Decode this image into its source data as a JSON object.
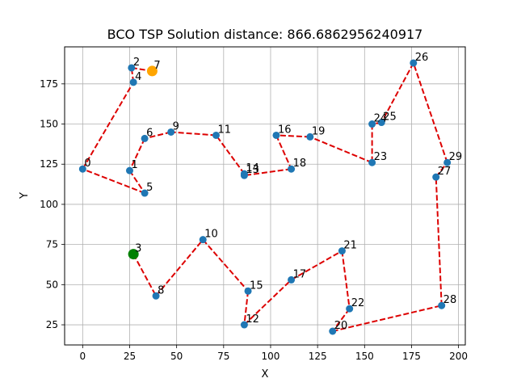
{
  "chart_data": {
    "type": "scatter",
    "title": "BCO TSP Solution distance: 866.6862956240917",
    "xlabel": "X",
    "ylabel": "Y",
    "xlim": [
      -9.6,
      203.6
    ],
    "ylim": [
      12.45,
      198.05
    ],
    "xticks": [
      0,
      25,
      50,
      75,
      100,
      125,
      150,
      175,
      200
    ],
    "yticks": [
      25,
      50,
      75,
      100,
      125,
      150,
      175
    ],
    "grid": true,
    "route_color": "#dd0000",
    "point_color": "#1f77b4",
    "start_color": "#008000",
    "end_color": "#ffa500",
    "points": [
      {
        "label": "0",
        "x": 0,
        "y": 122
      },
      {
        "label": "1",
        "x": 25,
        "y": 121
      },
      {
        "label": "2",
        "x": 26,
        "y": 185
      },
      {
        "label": "3",
        "x": 27,
        "y": 69
      },
      {
        "label": "4",
        "x": 27,
        "y": 176
      },
      {
        "label": "5",
        "x": 33,
        "y": 107
      },
      {
        "label": "6",
        "x": 33,
        "y": 141
      },
      {
        "label": "7",
        "x": 37,
        "y": 183
      },
      {
        "label": "8",
        "x": 39,
        "y": 43
      },
      {
        "label": "9",
        "x": 47,
        "y": 145
      },
      {
        "label": "10",
        "x": 64,
        "y": 78
      },
      {
        "label": "11",
        "x": 71,
        "y": 143
      },
      {
        "label": "12",
        "x": 86,
        "y": 25
      },
      {
        "label": "13",
        "x": 86,
        "y": 118
      },
      {
        "label": "14",
        "x": 86,
        "y": 119
      },
      {
        "label": "15",
        "x": 88,
        "y": 46
      },
      {
        "label": "16",
        "x": 103,
        "y": 143
      },
      {
        "label": "17",
        "x": 111,
        "y": 53
      },
      {
        "label": "18",
        "x": 111,
        "y": 122
      },
      {
        "label": "19",
        "x": 121,
        "y": 142
      },
      {
        "label": "20",
        "x": 133,
        "y": 21
      },
      {
        "label": "21",
        "x": 138,
        "y": 71
      },
      {
        "label": "22",
        "x": 142,
        "y": 35
      },
      {
        "label": "23",
        "x": 154,
        "y": 126
      },
      {
        "label": "24",
        "x": 154,
        "y": 150
      },
      {
        "label": "25",
        "x": 159,
        "y": 151
      },
      {
        "label": "26",
        "x": 176,
        "y": 188
      },
      {
        "label": "27",
        "x": 188,
        "y": 117
      },
      {
        "label": "28",
        "x": 191,
        "y": 37
      },
      {
        "label": "29",
        "x": 194,
        "y": 126
      }
    ],
    "route": [
      3,
      8,
      10,
      15,
      12,
      17,
      21,
      22,
      20,
      28,
      27,
      29,
      26,
      25,
      24,
      23,
      19,
      16,
      18,
      13,
      14,
      11,
      9,
      6,
      1,
      5,
      0,
      4,
      2,
      7
    ],
    "start_point": 3,
    "end_point": 7
  }
}
